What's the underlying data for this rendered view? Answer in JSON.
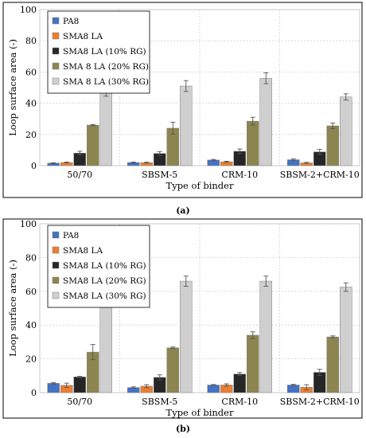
{
  "colors": {
    "PA8": "#4472c4",
    "SMA8 LA": "#ed7d31",
    "SMA8 LA (10% RG)": "#262626",
    "SMA 8 LA (20% RG)": "#8c8550",
    "SMA 8 LA (30% RG)": "#cfcfcf"
  },
  "chart_data": [
    {
      "type": "bar",
      "panel_label": "(a)",
      "xlabel": "Type of binder",
      "ylabel": "Loop surface area (-)",
      "ylim": [
        0,
        100
      ],
      "yticks": [
        0,
        20,
        40,
        60,
        80,
        100
      ],
      "grid": true,
      "legend_position": "top-left",
      "categories": [
        "50/70",
        "SBSM-5",
        "CRM-10",
        "SBSM-2+CRM-10"
      ],
      "series": [
        {
          "name": "PA8",
          "color_key": "PA8",
          "values": [
            1.6,
            2.0,
            3.6,
            3.8
          ],
          "errors": [
            0.3,
            0.3,
            0.4,
            0.5
          ]
        },
        {
          "name": "SMA8 LA",
          "color_key": "SMA8 LA",
          "values": [
            2.0,
            1.9,
            2.5,
            1.8
          ],
          "errors": [
            0.3,
            0.3,
            0.3,
            0.3
          ]
        },
        {
          "name": "SMA8 LA (10% RG)",
          "color_key": "SMA8 LA (10% RG)",
          "values": [
            8.0,
            7.8,
            9.2,
            8.8
          ],
          "errors": [
            1.2,
            1.2,
            1.5,
            1.6
          ]
        },
        {
          "name": "SMA 8 LA (20% RG)",
          "color_key": "SMA 8 LA (20% RG)",
          "values": [
            26.0,
            24.0,
            28.5,
            25.5
          ],
          "errors": [
            0.4,
            3.8,
            2.5,
            1.8
          ]
        },
        {
          "name": "SMA 8 LA (30% RG)",
          "color_key": "SMA 8 LA (30% RG)",
          "values": [
            47.5,
            51.0,
            56.0,
            44.0
          ],
          "errors": [
            3.0,
            3.5,
            3.5,
            2.0
          ]
        }
      ]
    },
    {
      "type": "bar",
      "panel_label": "(b)",
      "xlabel": "Type of binder",
      "ylabel": "Loop surface area (-)",
      "ylim": [
        0,
        100
      ],
      "yticks": [
        0,
        20,
        40,
        60,
        80,
        100
      ],
      "grid": true,
      "legend_position": "top-left",
      "categories": [
        "50/70",
        "SBSM-5",
        "CRM-10",
        "SBSM-2+CRM-10"
      ],
      "series": [
        {
          "name": "PA8",
          "color_key": "PA8",
          "values": [
            5.5,
            3.0,
            4.5,
            4.5
          ],
          "errors": [
            0.4,
            0.4,
            0.3,
            0.4
          ]
        },
        {
          "name": "SMA8 LA",
          "color_key": "SMA8 LA",
          "values": [
            4.3,
            3.8,
            4.5,
            3.2
          ],
          "errors": [
            1.3,
            0.9,
            0.7,
            1.5
          ]
        },
        {
          "name": "SMA8 LA (10% RG)",
          "color_key": "SMA8 LA (10% RG)",
          "values": [
            9.3,
            9.0,
            11.0,
            12.0
          ],
          "errors": [
            0.4,
            1.5,
            0.9,
            1.8
          ]
        },
        {
          "name": "SMA8 LA (20% RG)",
          "color_key": "SMA 8 LA (20% RG)",
          "values": [
            24.0,
            26.5,
            34.0,
            33.0
          ],
          "errors": [
            4.5,
            0.5,
            2.0,
            0.6
          ]
        },
        {
          "name": "SMA8 LA (30% RG)",
          "color_key": "SMA 8 LA (30% RG)",
          "values": [
            59.5,
            66.0,
            66.0,
            62.5
          ],
          "errors": [
            4.5,
            3.0,
            3.0,
            2.5
          ]
        }
      ]
    }
  ]
}
